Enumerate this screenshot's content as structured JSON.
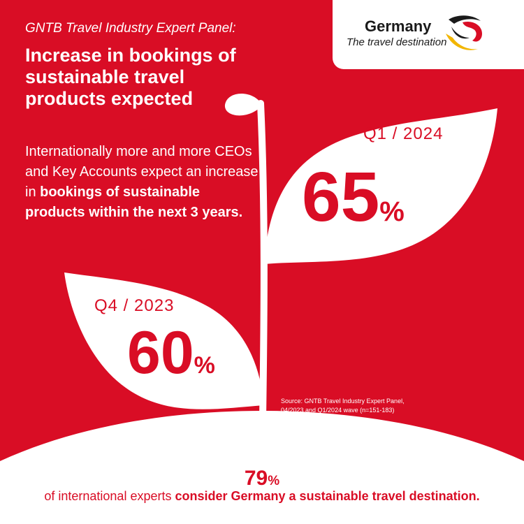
{
  "colors": {
    "brand_red": "#d90d25",
    "white": "#ffffff",
    "gold": "#f2b600",
    "black": "#1a1a1a"
  },
  "header": {
    "kicker": "GNTB Travel Industry Expert Panel:",
    "headline": "Increase in bookings of sustainable travel products expected"
  },
  "body": {
    "part1": "Internationally more and more CEOs and Key Accounts expect an increase in ",
    "bold": "bookings of sustainable products within the next 3 years."
  },
  "logo": {
    "title": "Germany",
    "subtitle": "The travel destination",
    "icon": "germany-eagle-swoosh-icon"
  },
  "leaves": [
    {
      "label": "Q1 / 2024",
      "value": "65",
      "unit": "%"
    },
    {
      "label": "Q4 / 2023",
      "value": "60",
      "unit": "%"
    }
  ],
  "source": {
    "line1": "Source: GNTB Travel Industry Expert Panel,",
    "line2": "04/2023 and Q1/2024 wave (n=151-183)"
  },
  "footer": {
    "value": "79",
    "unit": "%",
    "text_plain": "of international experts ",
    "text_bold": "consider Germany a sustainable travel destination."
  }
}
